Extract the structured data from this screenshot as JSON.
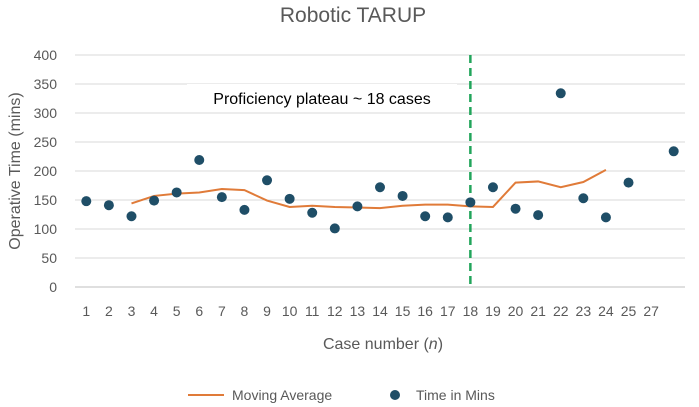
{
  "chart_data": {
    "type": "scatter",
    "title": "Robotic TARUP",
    "xlabel": "Case number",
    "xlabel_var": "n",
    "ylabel": "Operative Time (mins)",
    "ylim": [
      0,
      400
    ],
    "yticks": [
      0,
      50,
      100,
      150,
      200,
      250,
      300,
      350,
      400
    ],
    "x_tick_labels": [
      "1",
      "2",
      "3",
      "4",
      "5",
      "6",
      "7",
      "8",
      "9",
      "10",
      "11",
      "12",
      "13",
      "14",
      "15",
      "16",
      "17",
      "18",
      "19",
      "20",
      "21",
      "22",
      "23",
      "24",
      "25",
      "27"
    ],
    "grid": "horizontal",
    "legend_position": "bottom",
    "series": [
      {
        "name": "Time in Mins",
        "type": "scatter",
        "color": "#1f4e67",
        "points": [
          {
            "x": 1,
            "y": 148
          },
          {
            "x": 2,
            "y": 141
          },
          {
            "x": 3,
            "y": 122
          },
          {
            "x": 4,
            "y": 149
          },
          {
            "x": 5,
            "y": 163
          },
          {
            "x": 6,
            "y": 219
          },
          {
            "x": 7,
            "y": 155
          },
          {
            "x": 8,
            "y": 133
          },
          {
            "x": 9,
            "y": 184
          },
          {
            "x": 10,
            "y": 152
          },
          {
            "x": 11,
            "y": 128
          },
          {
            "x": 12,
            "y": 101
          },
          {
            "x": 13,
            "y": 139
          },
          {
            "x": 14,
            "y": 172
          },
          {
            "x": 15,
            "y": 157
          },
          {
            "x": 16,
            "y": 122
          },
          {
            "x": 17,
            "y": 120
          },
          {
            "x": 18,
            "y": 146
          },
          {
            "x": 19,
            "y": 172
          },
          {
            "x": 20,
            "y": 135
          },
          {
            "x": 21,
            "y": 124
          },
          {
            "x": 22,
            "y": 334
          },
          {
            "x": 23,
            "y": 153
          },
          {
            "x": 24,
            "y": 120
          },
          {
            "x": 25,
            "y": 180
          },
          {
            "x": 27,
            "y": 234
          }
        ]
      },
      {
        "name": "Moving Average",
        "type": "line",
        "color": "#e07b39",
        "points": [
          {
            "x": 3,
            "y": 144
          },
          {
            "x": 4,
            "y": 157
          },
          {
            "x": 5,
            "y": 161
          },
          {
            "x": 6,
            "y": 163
          },
          {
            "x": 7,
            "y": 169
          },
          {
            "x": 8,
            "y": 167
          },
          {
            "x": 9,
            "y": 149
          },
          {
            "x": 10,
            "y": 138
          },
          {
            "x": 11,
            "y": 140
          },
          {
            "x": 12,
            "y": 138
          },
          {
            "x": 13,
            "y": 137
          },
          {
            "x": 14,
            "y": 136
          },
          {
            "x": 15,
            "y": 140
          },
          {
            "x": 16,
            "y": 142
          },
          {
            "x": 17,
            "y": 142
          },
          {
            "x": 18,
            "y": 139
          },
          {
            "x": 19,
            "y": 138
          },
          {
            "x": 20,
            "y": 180
          },
          {
            "x": 21,
            "y": 182
          },
          {
            "x": 22,
            "y": 172
          },
          {
            "x": 23,
            "y": 181
          },
          {
            "x": 24,
            "y": 202
          }
        ]
      }
    ],
    "annotations": [
      {
        "text": "Proficiency plateau ~ 18 cases",
        "vline_x": 18,
        "line_color": "#22a55b",
        "line_style": "dashed"
      }
    ]
  }
}
